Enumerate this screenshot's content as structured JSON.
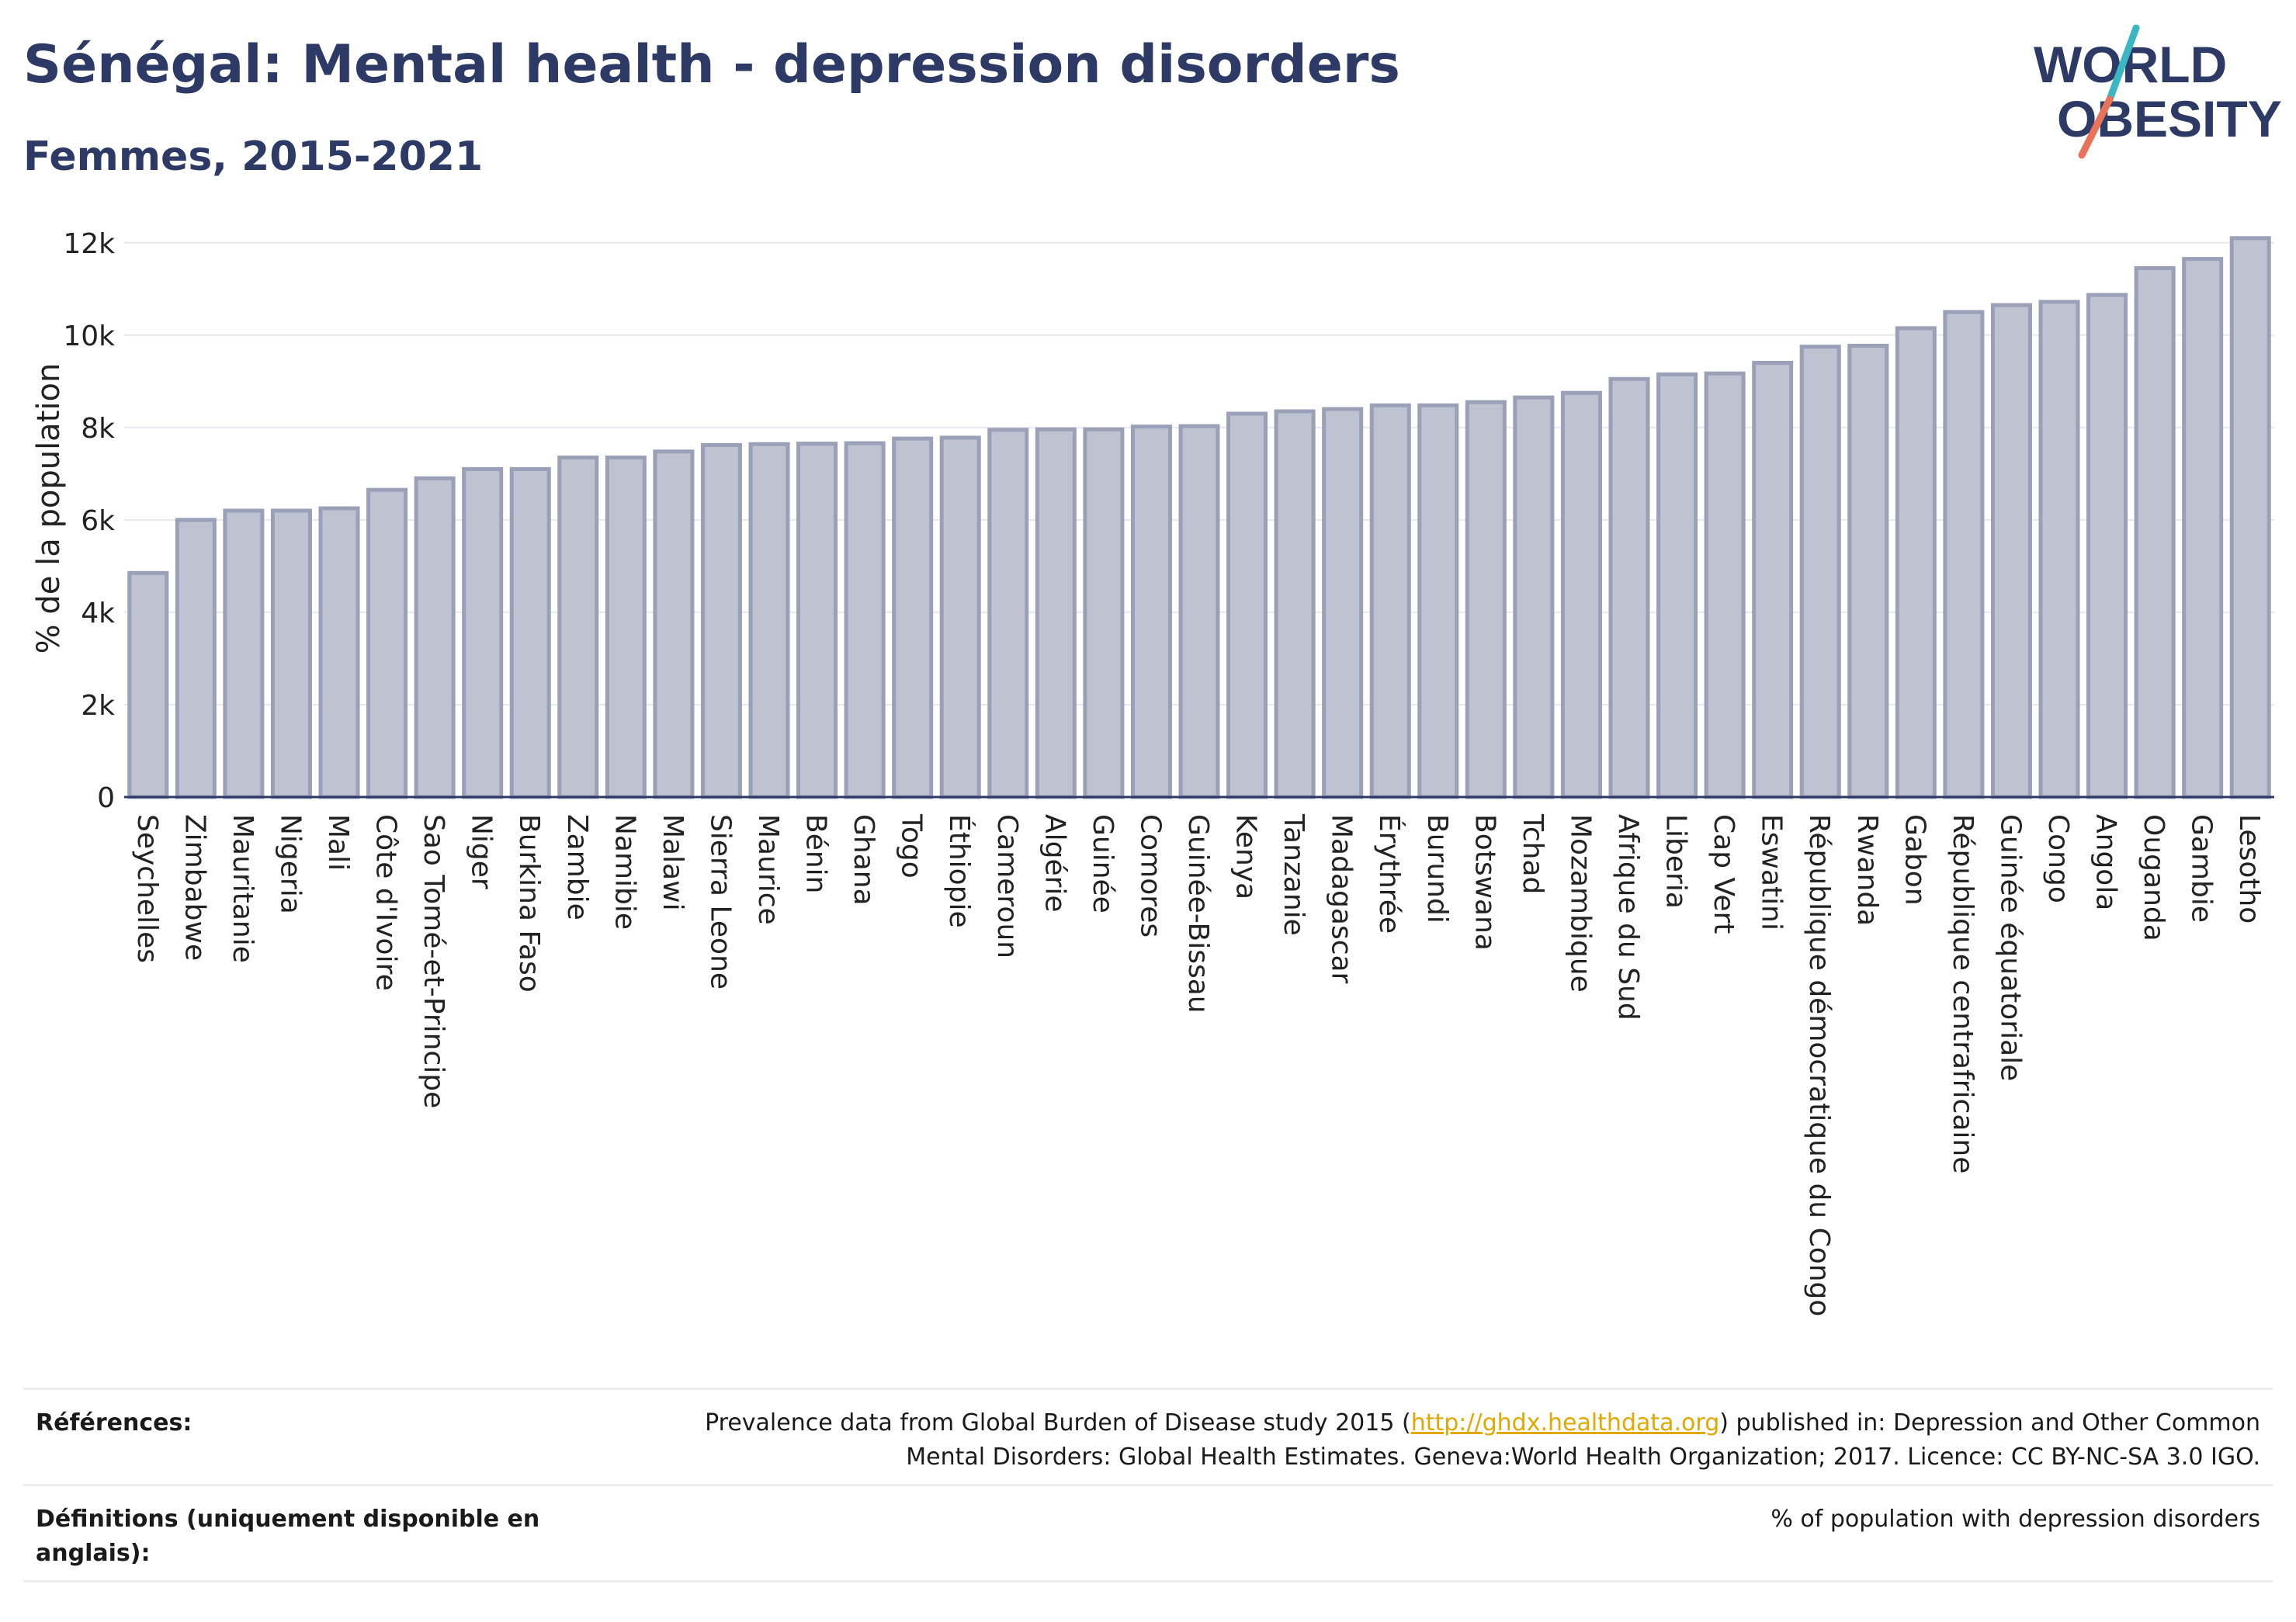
{
  "header": {
    "title": "Sénégal: Mental health - depression disorders",
    "subtitle": "Femmes, 2015-2021"
  },
  "logo": {
    "line1": "WORLD",
    "line2": "OBESITY",
    "accent": "#e8735a",
    "accent2": "#3bb7c4"
  },
  "chart_data": {
    "type": "bar",
    "ylabel": "% de la population",
    "xlabel": "",
    "ylim": [
      0,
      12500
    ],
    "yticks": [
      0,
      2000,
      4000,
      6000,
      8000,
      10000,
      12000
    ],
    "yticklabels": [
      "0",
      "2k",
      "4k",
      "6k",
      "8k",
      "10k",
      "12k"
    ],
    "grid": true,
    "bar_color": "#bfc2d0",
    "bar_edge": "#9aa0b8",
    "categories": [
      "Seychelles",
      "Zimbabwe",
      "Mauritanie",
      "Nigeria",
      "Mali",
      "Côte d'Ivoire",
      "Sao Tomé-et-Principe",
      "Niger",
      "Burkina Faso",
      "Zambie",
      "Namibie",
      "Malawi",
      "Sierra Leone",
      "Maurice",
      "Bénin",
      "Ghana",
      "Togo",
      "Éthiopie",
      "Cameroun",
      "Algérie",
      "Guinée",
      "Comores",
      "Guinée-Bissau",
      "Kenya",
      "Tanzanie",
      "Madagascar",
      "Érythrée",
      "Burundi",
      "Botswana",
      "Tchad",
      "Mozambique",
      "Afrique du Sud",
      "Liberia",
      "Cap Vert",
      "Eswatini",
      "République démocratique du Congo",
      "Rwanda",
      "Gabon",
      "République centrafricaine",
      "Guinée équatoriale",
      "Congo",
      "Angola",
      "Ouganda",
      "Gambie",
      "Lesotho"
    ],
    "values": [
      4850,
      6000,
      6200,
      6200,
      6250,
      6650,
      6900,
      7100,
      7100,
      7350,
      7350,
      7480,
      7620,
      7640,
      7650,
      7660,
      7760,
      7780,
      7950,
      7960,
      7960,
      8020,
      8030,
      8300,
      8350,
      8400,
      8480,
      8480,
      8550,
      8650,
      8750,
      9050,
      9150,
      9170,
      9400,
      9750,
      9770,
      10150,
      10500,
      10650,
      10720,
      10870,
      11450,
      11650,
      12100
    ]
  },
  "footer": {
    "references_label": "Références:",
    "references_pre": "Prevalence data from Global Burden of Disease study 2015 (",
    "references_link": "http://ghdx.healthdata.org",
    "references_post": ") published in: Depression and Other Common",
    "references_line2": "Mental Disorders: Global Health Estimates. Geneva:World Health Organization; 2017. Licence: CC BY-NC-SA 3.0 IGO.",
    "definitions_label_1": "Définitions (uniquement disponible en",
    "definitions_label_2": "anglais):",
    "definitions_text": "% of population with depression disorders"
  }
}
